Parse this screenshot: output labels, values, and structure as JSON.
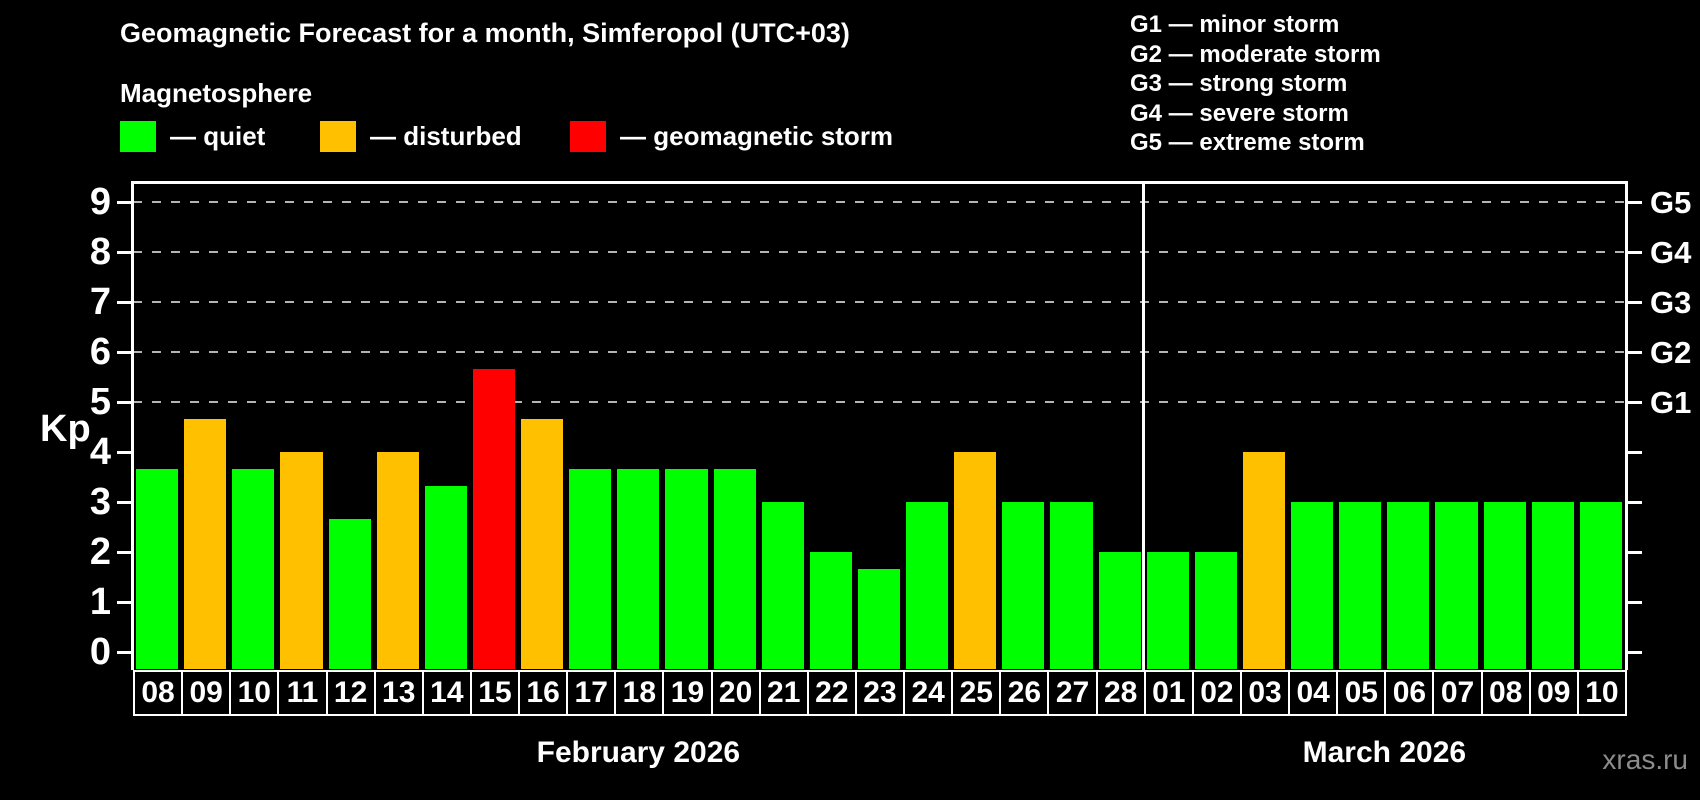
{
  "header": {
    "title": "Geomagnetic Forecast for a month, Simferopol (UTC+03)",
    "subtitle": "Magnetosphere"
  },
  "legend": {
    "items": [
      {
        "name": "quiet",
        "label": "— quiet",
        "color": "#00ff00"
      },
      {
        "name": "disturbed",
        "label": "— disturbed",
        "color": "#ffc000"
      },
      {
        "name": "storm",
        "label": "— geomagnetic storm",
        "color": "#ff0000"
      }
    ]
  },
  "storm_scale_legend": {
    "items": [
      "G1 — minor storm",
      "G2 — moderate storm",
      "G3 — strong storm",
      "G4 — severe storm",
      "G5 — extreme storm"
    ]
  },
  "watermark": "xras.ru",
  "chart_data": {
    "type": "bar",
    "title": "Geomagnetic Forecast for a month, Simferopol (UTC+03)",
    "ylabel": "Kp",
    "ylim": [
      0,
      9
    ],
    "yticks": [
      0,
      1,
      2,
      3,
      4,
      5,
      6,
      7,
      8,
      9
    ],
    "gridlines_at": [
      5,
      6,
      7,
      8,
      9
    ],
    "grid": "dashed horizontal at storm levels only",
    "right_axis_labels": [
      {
        "value": 9,
        "label": "G5"
      },
      {
        "value": 8,
        "label": "G4"
      },
      {
        "value": 7,
        "label": "G3"
      },
      {
        "value": 6,
        "label": "G2"
      },
      {
        "value": 5,
        "label": "G1"
      }
    ],
    "categories": [
      "08",
      "09",
      "10",
      "11",
      "12",
      "13",
      "14",
      "15",
      "16",
      "17",
      "18",
      "19",
      "20",
      "21",
      "22",
      "23",
      "24",
      "25",
      "26",
      "27",
      "28",
      "01",
      "02",
      "03",
      "04",
      "05",
      "06",
      "07",
      "08",
      "09",
      "10"
    ],
    "values": [
      3.67,
      4.67,
      3.67,
      4,
      2.67,
      4,
      3.33,
      5.67,
      4.67,
      3.67,
      3.67,
      3.67,
      3.67,
      3,
      2,
      1.67,
      3,
      4,
      3,
      3,
      2,
      2,
      2,
      4,
      3,
      3,
      3,
      3,
      3,
      3,
      3
    ],
    "statuses": [
      "quiet",
      "disturbed",
      "quiet",
      "disturbed",
      "quiet",
      "disturbed",
      "quiet",
      "storm",
      "disturbed",
      "quiet",
      "quiet",
      "quiet",
      "quiet",
      "quiet",
      "quiet",
      "quiet",
      "quiet",
      "disturbed",
      "quiet",
      "quiet",
      "quiet",
      "quiet",
      "quiet",
      "disturbed",
      "quiet",
      "quiet",
      "quiet",
      "quiet",
      "quiet",
      "quiet",
      "quiet"
    ],
    "colors": {
      "quiet": "#00ff00",
      "disturbed": "#ffc000",
      "storm": "#ff0000"
    },
    "months": [
      {
        "label": "February 2026",
        "days": 21
      },
      {
        "label": "March 2026",
        "days": 10
      }
    ]
  }
}
